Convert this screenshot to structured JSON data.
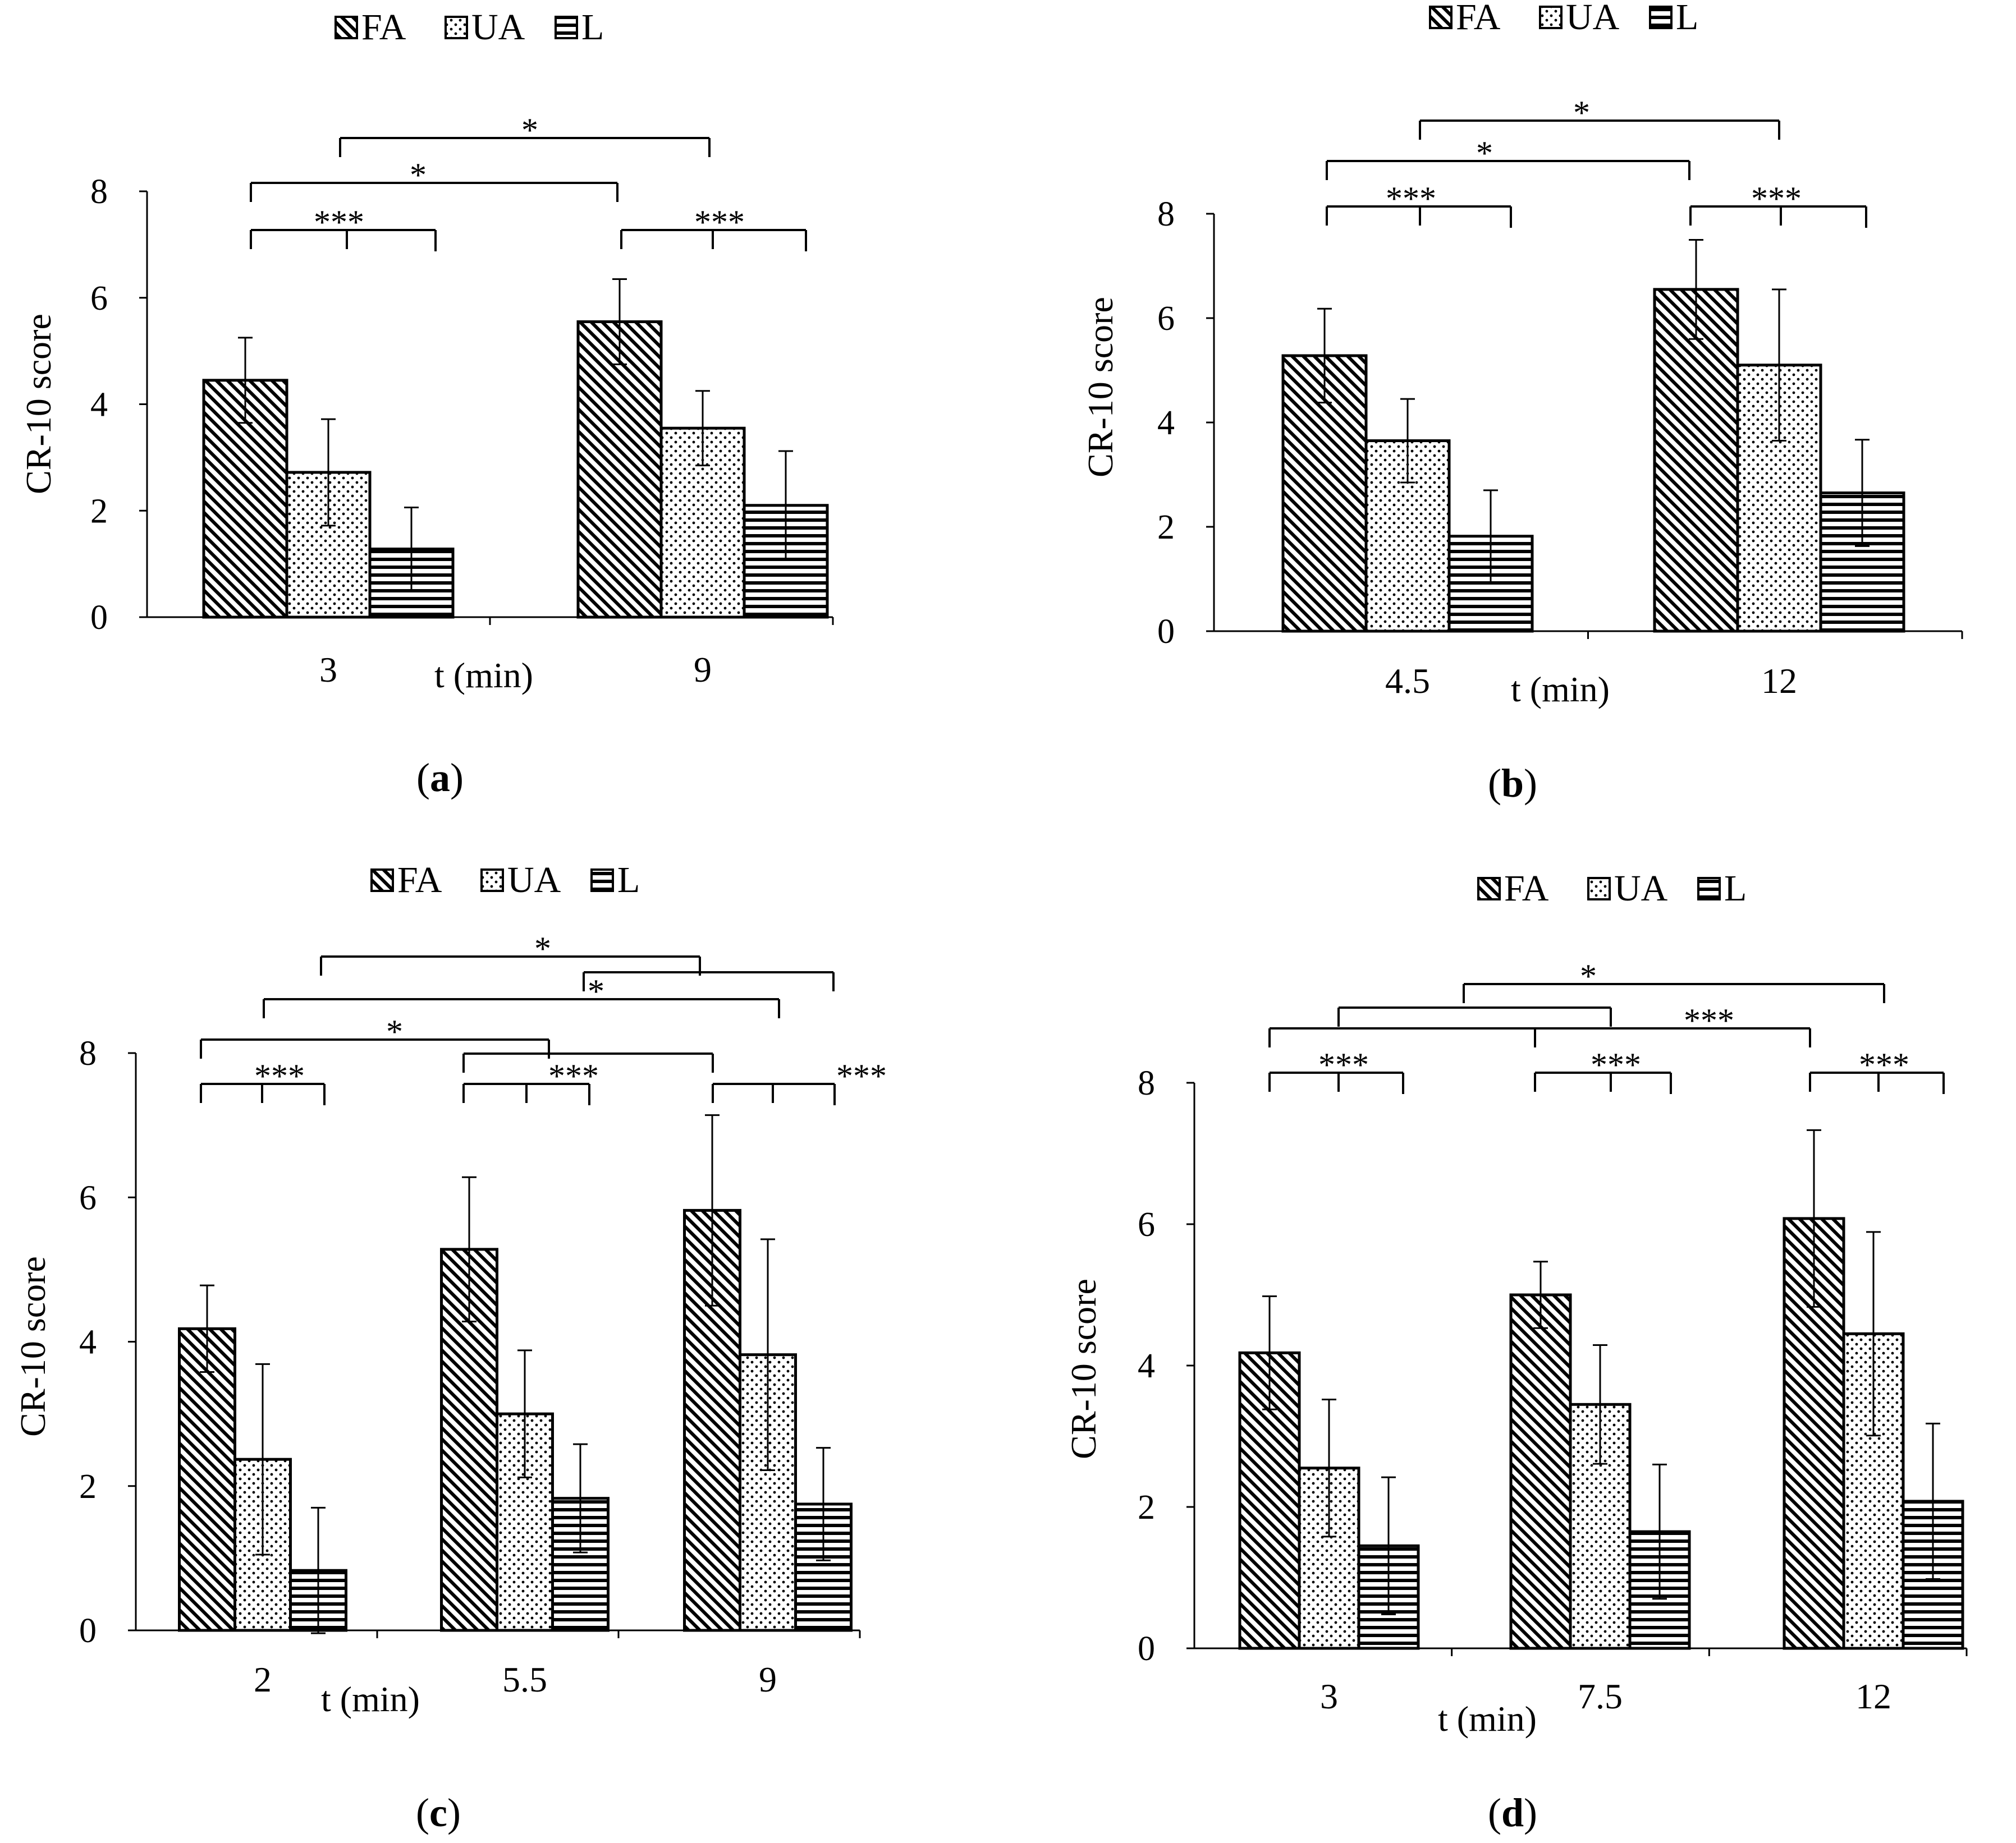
{
  "chart_data": [
    {
      "type": "bar",
      "panel_label": "a",
      "legend": [
        "FA",
        "UA",
        "L"
      ],
      "xlabel": "t (min)",
      "ylabel": "CR-10 score",
      "ylim": [
        0,
        8
      ],
      "yticks": [
        "0",
        "2",
        "4",
        "6",
        "8"
      ],
      "categories": [
        "3",
        "9"
      ],
      "series": [
        {
          "name": "FA",
          "values": [
            4.45,
            5.55
          ],
          "errors": [
            0.8,
            0.8
          ]
        },
        {
          "name": "UA",
          "values": [
            2.72,
            3.55
          ],
          "errors": [
            1.0,
            0.7
          ]
        },
        {
          "name": "L",
          "values": [
            1.28,
            2.1
          ],
          "errors": [
            0.78,
            1.02
          ]
        }
      ],
      "significance": [
        "***",
        "***",
        "*",
        "*"
      ]
    },
    {
      "type": "bar",
      "panel_label": "b",
      "legend": [
        "FA",
        "UA",
        "L"
      ],
      "xlabel": "t (min)",
      "ylabel": "CR-10 score",
      "ylim": [
        0,
        8
      ],
      "yticks": [
        "0",
        "2",
        "4",
        "6",
        "8"
      ],
      "categories": [
        "4.5",
        "12"
      ],
      "series": [
        {
          "name": "FA",
          "values": [
            5.28,
            6.55
          ],
          "errors": [
            0.9,
            0.95
          ]
        },
        {
          "name": "UA",
          "values": [
            3.65,
            5.1
          ],
          "errors": [
            0.8,
            1.45
          ]
        },
        {
          "name": "L",
          "values": [
            1.82,
            2.65
          ],
          "errors": [
            0.88,
            1.02
          ]
        }
      ],
      "significance": [
        "***",
        "***",
        "*",
        "*"
      ]
    },
    {
      "type": "bar",
      "panel_label": "c",
      "legend": [
        "FA",
        "UA",
        "L"
      ],
      "xlabel": "t (min)",
      "ylabel": "CR-10 score",
      "ylim": [
        0,
        8
      ],
      "yticks": [
        "0",
        "2",
        "4",
        "6",
        "8"
      ],
      "categories": [
        "2",
        "5.5",
        "9"
      ],
      "series": [
        {
          "name": "FA",
          "values": [
            4.18,
            5.28,
            5.82
          ],
          "errors": [
            0.6,
            1.0,
            1.32
          ]
        },
        {
          "name": "UA",
          "values": [
            2.37,
            3.0,
            3.82
          ],
          "errors": [
            1.32,
            0.88,
            1.6
          ]
        },
        {
          "name": "L",
          "values": [
            0.83,
            1.83,
            1.75
          ],
          "errors": [
            0.87,
            0.75,
            0.78
          ]
        }
      ],
      "significance": [
        "***",
        "***",
        "***",
        "*",
        "*",
        "*",
        "*"
      ]
    },
    {
      "type": "bar",
      "panel_label": "d",
      "legend": [
        "FA",
        "UA",
        "L"
      ],
      "xlabel": "t (min)",
      "ylabel": "CR-10 score",
      "ylim": [
        0,
        8
      ],
      "yticks": [
        "0",
        "2",
        "4",
        "6",
        "8"
      ],
      "categories": [
        "3",
        "7.5",
        "12"
      ],
      "series": [
        {
          "name": "FA",
          "values": [
            4.18,
            5.0,
            6.08
          ],
          "errors": [
            0.8,
            0.47,
            1.25
          ]
        },
        {
          "name": "UA",
          "values": [
            2.55,
            3.45,
            4.45
          ],
          "errors": [
            0.97,
            0.84,
            1.44
          ]
        },
        {
          "name": "L",
          "values": [
            1.45,
            1.65,
            2.08
          ],
          "errors": [
            0.97,
            0.95,
            1.1
          ]
        }
      ],
      "significance": [
        "***",
        "***",
        "***",
        "***",
        "*"
      ]
    }
  ]
}
